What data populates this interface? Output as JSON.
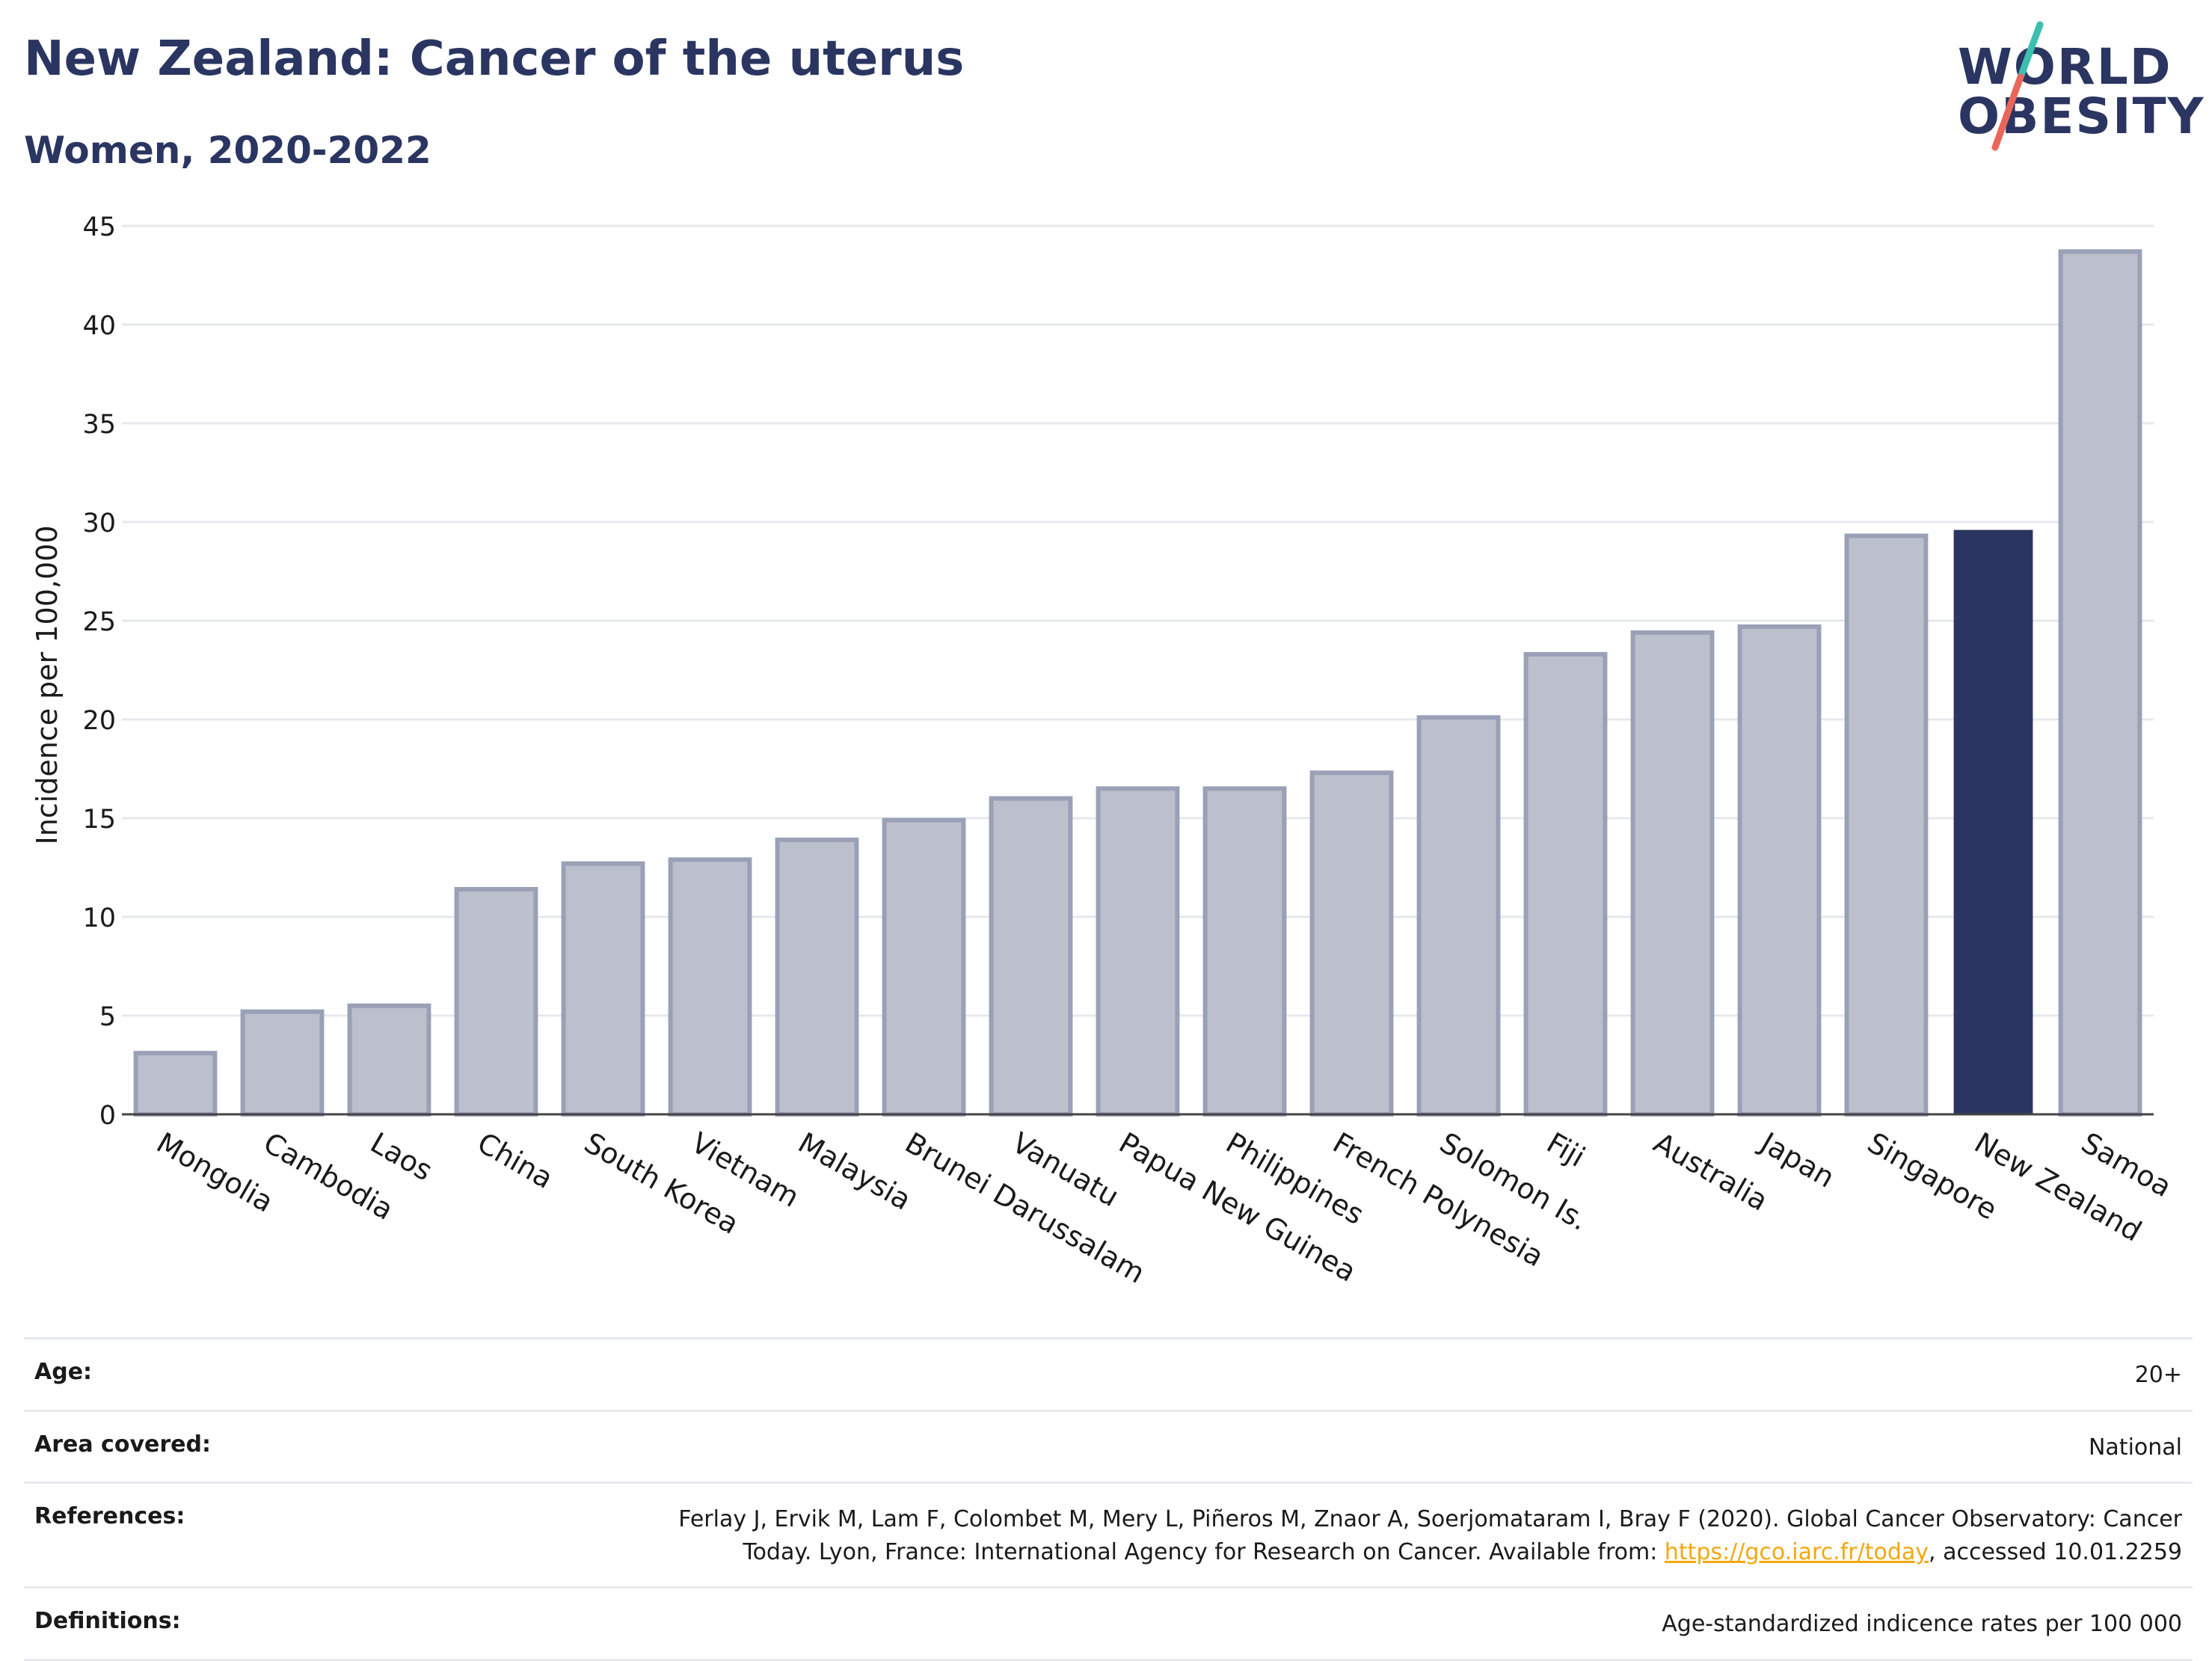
{
  "header": {
    "title": "New Zealand: Cancer of the uterus",
    "subtitle": "Women, 2020-2022"
  },
  "logo": {
    "line1": "WORLD",
    "line2": "OBESITY",
    "accent_teal": "#3bbfb0",
    "accent_red": "#e8675a"
  },
  "colors": {
    "bar": "#bcc0cd",
    "bar_stroke": "#9aa0b6",
    "highlight": "#2b3561",
    "grid": "#e6e8ee"
  },
  "chart_data": {
    "type": "bar",
    "title": "New Zealand: Cancer of the uterus",
    "subtitle": "Women, 2020-2022",
    "ylabel": "Incidence per 100,000",
    "xlabel": "",
    "ylim": [
      0,
      45
    ],
    "yticks": [
      0,
      5,
      10,
      15,
      20,
      25,
      30,
      35,
      40,
      45
    ],
    "grid": true,
    "highlight": "New Zealand",
    "categories": [
      "Mongolia",
      "Cambodia",
      "Laos",
      "China",
      "South Korea",
      "Vietnam",
      "Malaysia",
      "Brunei Darussalam",
      "Vanuatu",
      "Papua New Guinea",
      "Philippines",
      "French Polynesia",
      "Solomon Is.",
      "Fiji",
      "Australia",
      "Japan",
      "Singapore",
      "New Zealand",
      "Samoa"
    ],
    "values": [
      3.1,
      5.2,
      5.5,
      11.4,
      12.7,
      12.9,
      13.9,
      14.9,
      16.0,
      16.5,
      16.5,
      17.3,
      20.1,
      23.3,
      24.4,
      24.7,
      29.3,
      29.6,
      43.7
    ]
  },
  "info": [
    {
      "label": "Age:",
      "value": "20+"
    },
    {
      "label": "Area covered:",
      "value": "National"
    },
    {
      "label": "References:",
      "value_pre": "Ferlay J, Ervik M, Lam F, Colombet M, Mery L, Piñeros M, Znaor A, Soerjomataram I, Bray F (2020). Global Cancer Observatory: Cancer Today. Lyon, France: International Agency for Research on Cancer. Available from: ",
      "link": "https://gco.iarc.fr/today",
      "value_post": ", accessed 10.01.2259"
    },
    {
      "label": "Definitions:",
      "value": "Age-standardized indicence rates per 100 000"
    }
  ]
}
